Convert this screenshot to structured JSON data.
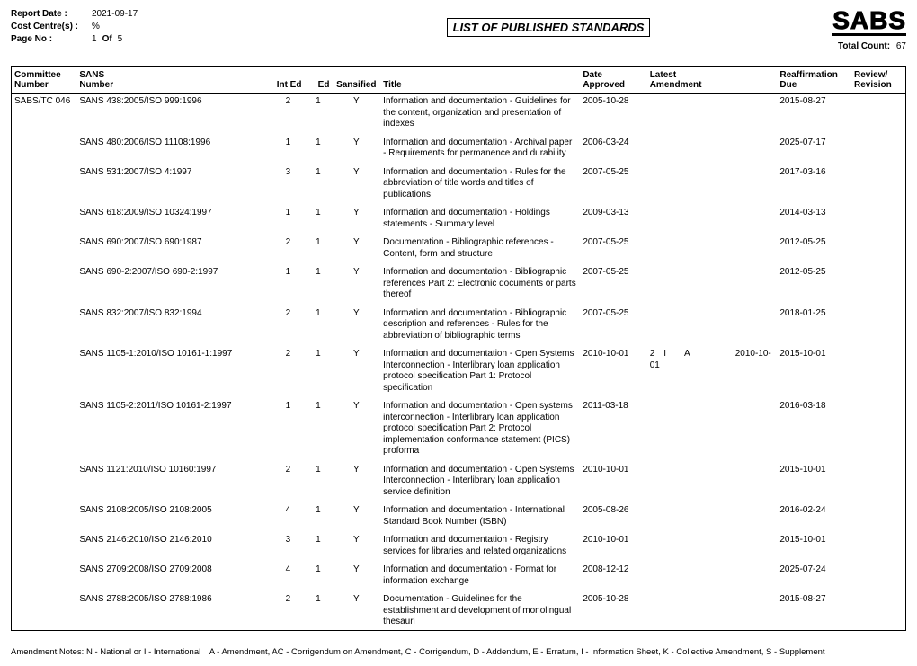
{
  "header": {
    "report_date_label": "Report Date :",
    "report_date_value": "2021-09-17",
    "cost_centre_label": "Cost Centre(s) :",
    "cost_centre_value": "%",
    "page_no_label": "Page No :",
    "page_no_value": "1",
    "of_label": "Of",
    "page_total": "5",
    "report_title": "LIST OF PUBLISHED STANDARDS",
    "logo": "SABS",
    "total_count_label": "Total Count:",
    "total_count_value": "67"
  },
  "columns": {
    "committee_l1": "Committee",
    "committee_l2": "Number",
    "sans_l1": "SANS",
    "sans_l2": "Number",
    "inted": "Int Ed",
    "ed": "Ed",
    "sansified": "Sansified",
    "title": "Title",
    "approved_l1": "Date",
    "approved_l2": "Approved",
    "amend_l1": "Latest",
    "amend_l2": "Amendment",
    "reaff_l1": "Reaffirmation",
    "reaff_l2": "Due",
    "review_l1": "Review/",
    "review_l2": "Revision"
  },
  "committee": "SABS/TC 046",
  "rows": [
    {
      "sans": "SANS 438:2005/ISO 999:1996",
      "inted": "2",
      "ed": "1",
      "sansified": "Y",
      "title": "Information and documentation - Guidelines for the content, organization and presentation of indexes",
      "approved": "2005-10-28",
      "amend": "",
      "reaff": "2015-08-27",
      "review": ""
    },
    {
      "sans": "SANS 480:2006/ISO 11108:1996",
      "inted": "1",
      "ed": "1",
      "sansified": "Y",
      "title": "Information and documentation - Archival paper - Requirements for permanence and durability",
      "approved": "2006-03-24",
      "amend": "",
      "reaff": "2025-07-17",
      "review": ""
    },
    {
      "sans": "SANS 531:2007/ISO 4:1997",
      "inted": "3",
      "ed": "1",
      "sansified": "Y",
      "title": "Information and documentation - Rules for the abbreviation of title words and titles of publications",
      "approved": "2007-05-25",
      "amend": "",
      "reaff": "2017-03-16",
      "review": ""
    },
    {
      "sans": "SANS 618:2009/ISO 10324:1997",
      "inted": "1",
      "ed": "1",
      "sansified": "Y",
      "title": "Information and documentation - Holdings statements - Summary level",
      "approved": "2009-03-13",
      "amend": "",
      "reaff": "2014-03-13",
      "review": ""
    },
    {
      "sans": "SANS 690:2007/ISO 690:1987",
      "inted": "2",
      "ed": "1",
      "sansified": "Y",
      "title": "Documentation - Bibliographic references - Content, form and structure",
      "approved": "2007-05-25",
      "amend": "",
      "reaff": "2012-05-25",
      "review": ""
    },
    {
      "sans": "SANS 690-2:2007/ISO 690-2:1997",
      "inted": "1",
      "ed": "1",
      "sansified": "Y",
      "title": "Information and documentation - Bibliographic references Part 2: Electronic documents or parts thereof",
      "approved": "2007-05-25",
      "amend": "",
      "reaff": "2012-05-25",
      "review": ""
    },
    {
      "sans": "SANS 832:2007/ISO 832:1994",
      "inted": "2",
      "ed": "1",
      "sansified": "Y",
      "title": "Information and documentation - Bibliographic description and references - Rules for the abbreviation of bibliographic terms",
      "approved": "2007-05-25",
      "amend": "",
      "reaff": "2018-01-25",
      "review": ""
    },
    {
      "sans": "SANS 1105-1:2010/ISO 10161-1:1997",
      "inted": "2",
      "ed": "1",
      "sansified": "Y",
      "title": "Information and documentation - Open Systems Interconnection - Interlibrary loan application protocol specification Part 1: Protocol specification",
      "approved": "2010-10-01",
      "amend": "2 I  A     2010-10-01",
      "reaff": "2015-10-01",
      "review": ""
    },
    {
      "sans": "SANS 1105-2:2011/ISO 10161-2:1997",
      "inted": "1",
      "ed": "1",
      "sansified": "Y",
      "title": "Information and documentation - Open systems interconnection - Interlibrary loan application protocol specification Part 2: Protocol implementation conformance statement (PICS) proforma",
      "approved": "2011-03-18",
      "amend": "",
      "reaff": "2016-03-18",
      "review": ""
    },
    {
      "sans": "SANS 1121:2010/ISO 10160:1997",
      "inted": "2",
      "ed": "1",
      "sansified": "Y",
      "title": "Information and documentation - Open Systems Interconnection - Interlibrary loan application service definition",
      "approved": "2010-10-01",
      "amend": "",
      "reaff": "2015-10-01",
      "review": ""
    },
    {
      "sans": "SANS 2108:2005/ISO 2108:2005",
      "inted": "4",
      "ed": "1",
      "sansified": "Y",
      "title": "Information and documentation - International Standard Book Number (ISBN)",
      "approved": "2005-08-26",
      "amend": "",
      "reaff": "2016-02-24",
      "review": ""
    },
    {
      "sans": "SANS 2146:2010/ISO 2146:2010",
      "inted": "3",
      "ed": "1",
      "sansified": "Y",
      "title": "Information and documentation - Registry services for libraries and related organizations",
      "approved": "2010-10-01",
      "amend": "",
      "reaff": "2015-10-01",
      "review": ""
    },
    {
      "sans": "SANS 2709:2008/ISO 2709:2008",
      "inted": "4",
      "ed": "1",
      "sansified": "Y",
      "title": "Information and documentation - Format for information exchange",
      "approved": "2008-12-12",
      "amend": "",
      "reaff": "2025-07-24",
      "review": ""
    },
    {
      "sans": "SANS 2788:2005/ISO 2788:1986",
      "inted": "2",
      "ed": "1",
      "sansified": "Y",
      "title": "Documentation - Guidelines for the establishment and development of monolingual thesauri",
      "approved": "2005-10-28",
      "amend": "",
      "reaff": "2015-08-27",
      "review": ""
    }
  ],
  "footer": "Amendment Notes: N - National or I - International A - Amendment, AC - Corrigendum on Amendment, C - Corrigendum, D - Addendum, E - Erratum, I - Information Sheet, K - Collective Amendment, S - Supplement"
}
